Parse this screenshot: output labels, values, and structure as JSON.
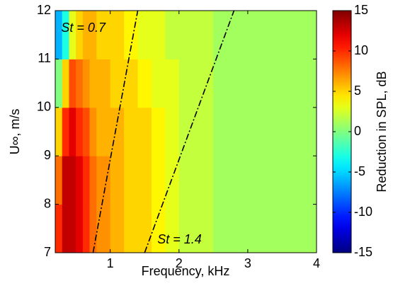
{
  "chart_data": {
    "type": "heatmap",
    "colormap": "jet",
    "xlabel": "Frequency, kHz",
    "ylabel": "U∞, m/s",
    "colorbar_label": "Reduction in SPL, dB",
    "x_edges": [
      0.2,
      0.3,
      0.4,
      0.5,
      0.6,
      0.7,
      0.8,
      1.0,
      1.2,
      1.4,
      1.6,
      1.8,
      2.0,
      2.5,
      3.0,
      3.5,
      4.0
    ],
    "y_edges": [
      7,
      8,
      9,
      10,
      11,
      12
    ],
    "z": [
      [
        10,
        13,
        13,
        12,
        10,
        8,
        7,
        6,
        5,
        5,
        4,
        3,
        2,
        1,
        1,
        1
      ],
      [
        8,
        13,
        13,
        12,
        10,
        8,
        7,
        6,
        5,
        5,
        4,
        3,
        2,
        1,
        1,
        1
      ],
      [
        5,
        10,
        12,
        10,
        9,
        7,
        6,
        6,
        5,
        5,
        4,
        3,
        2,
        1,
        1,
        1
      ],
      [
        0,
        5,
        9,
        8,
        7,
        6,
        6,
        5,
        5,
        4,
        3,
        3,
        2,
        1,
        1,
        1
      ],
      [
        -6,
        -3,
        3,
        5,
        6,
        6,
        5,
        5,
        4,
        3,
        3,
        2,
        2,
        1,
        1,
        1
      ]
    ],
    "xlim": [
      0.2,
      4
    ],
    "ylim": [
      7,
      12
    ],
    "xticks": [
      1,
      2,
      3,
      4
    ],
    "yticks": [
      7,
      8,
      9,
      10,
      11,
      12
    ],
    "clim": [
      -15,
      15
    ],
    "cticks": [
      -15,
      -10,
      -5,
      0,
      5,
      10,
      15
    ],
    "lines": [
      {
        "label": "St = 0.7",
        "x": [
          0.75,
          1.4
        ],
        "y": [
          7,
          12
        ],
        "color": "#000000"
      },
      {
        "label": "St = 1.4",
        "x": [
          1.5,
          2.8
        ],
        "y": [
          7,
          12
        ],
        "color": "#000000"
      }
    ]
  }
}
